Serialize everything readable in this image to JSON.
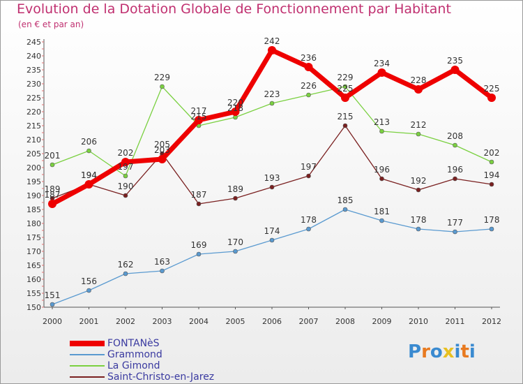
{
  "chart_data": {
    "type": "line",
    "title": "Evolution de la Dotation Globale de Fonctionnement par Habitant",
    "subtitle": "(en € et par an)",
    "categories": [
      "2000",
      "2001",
      "2002",
      "2003",
      "2004",
      "2005",
      "2006",
      "2007",
      "2008",
      "2009",
      "2010",
      "2011",
      "2012"
    ],
    "y_ticks": [
      150,
      155,
      160,
      165,
      170,
      175,
      180,
      185,
      190,
      195,
      200,
      205,
      210,
      215,
      220,
      225,
      230,
      235,
      240,
      245
    ],
    "ylim": [
      150,
      245
    ],
    "grid": false,
    "legend_position": "bottom-left",
    "series": [
      {
        "name": "FONTANèS",
        "color": "#ee0000",
        "values": [
          187,
          194,
          202,
          203,
          217,
          220,
          242,
          236,
          225,
          234,
          228,
          235,
          225
        ]
      },
      {
        "name": "Grammond",
        "color": "#5a9ad0",
        "values": [
          151,
          156,
          162,
          163,
          169,
          170,
          174,
          178,
          185,
          181,
          178,
          177,
          178
        ]
      },
      {
        "name": "La Gimond",
        "color": "#7ad040",
        "values": [
          201,
          206,
          197,
          229,
          215,
          218,
          223,
          226,
          229,
          213,
          212,
          208,
          202
        ]
      },
      {
        "name": "Saint-Christo-en-Jarez",
        "color": "#7a2020",
        "values": [
          189,
          194,
          190,
          205,
          187,
          189,
          193,
          197,
          215,
          196,
          192,
          196,
          194
        ]
      }
    ]
  },
  "logo": {
    "text": "Proxiti",
    "letters": [
      "P",
      "r",
      "o",
      "x",
      "i",
      "t",
      "i"
    ],
    "colors": [
      "#3a8ad0",
      "#e87a20",
      "#3a8ad0",
      "#e8c020",
      "#3a8ad0",
      "#e87a20",
      "#3a8ad0"
    ]
  }
}
